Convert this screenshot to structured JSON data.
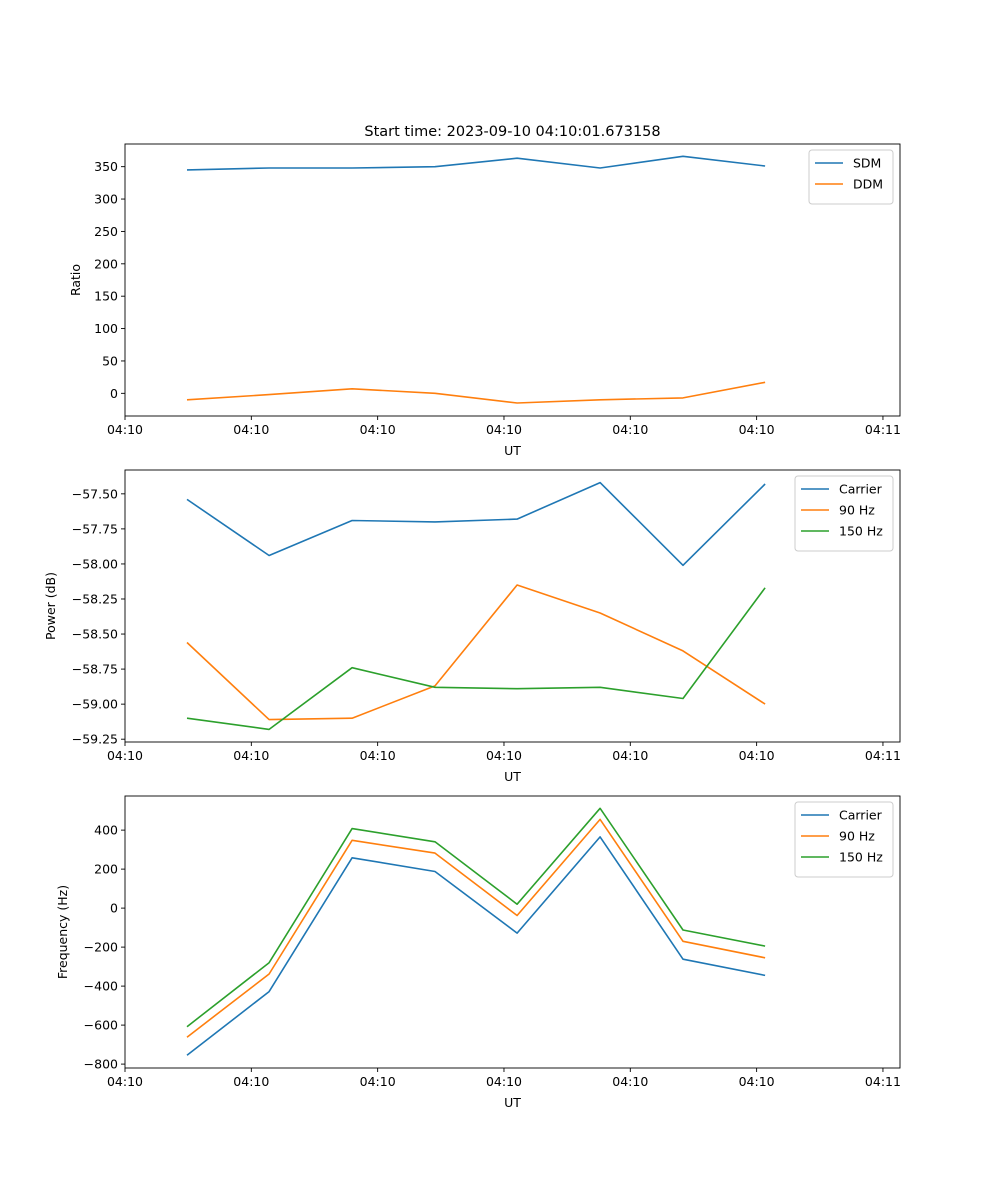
{
  "chart_data": [
    {
      "type": "line",
      "title": "Start time: 2023-09-10 04:10:01.673158",
      "xlabel": "UT",
      "ylabel": "Ratio",
      "xlim": [
        0,
        1
      ],
      "ylim": [
        -35,
        385
      ],
      "x": [
        0.08,
        0.186,
        0.293,
        0.4,
        0.506,
        0.613,
        0.72,
        0.826
      ],
      "xticks": [
        0.0,
        0.163,
        0.326,
        0.489,
        0.652,
        0.815,
        0.978
      ],
      "xtick_labels": [
        "04:10",
        "04:10",
        "04:10",
        "04:10",
        "04:10",
        "04:10",
        "04:11"
      ],
      "yticks": [
        0,
        50,
        100,
        150,
        200,
        250,
        300,
        350
      ],
      "ytick_labels": [
        "0",
        "50",
        "100",
        "150",
        "200",
        "250",
        "300",
        "350"
      ],
      "legend_position": "top-right",
      "series": [
        {
          "name": "SDM",
          "color": "#1f77b4",
          "values": [
            345,
            348,
            348,
            350,
            363,
            348,
            366,
            351
          ]
        },
        {
          "name": "DDM",
          "color": "#ff7f0e",
          "values": [
            -10,
            -2,
            7,
            0,
            -15,
            -10,
            -7,
            17
          ]
        }
      ]
    },
    {
      "type": "line",
      "title": "",
      "xlabel": "UT",
      "ylabel": "Power (dB)",
      "xlim": [
        0,
        1
      ],
      "ylim": [
        -59.27,
        -57.33
      ],
      "x": [
        0.08,
        0.186,
        0.293,
        0.4,
        0.506,
        0.613,
        0.72,
        0.826
      ],
      "xticks": [
        0.0,
        0.163,
        0.326,
        0.489,
        0.652,
        0.815,
        0.978
      ],
      "xtick_labels": [
        "04:10",
        "04:10",
        "04:10",
        "04:10",
        "04:10",
        "04:10",
        "04:11"
      ],
      "yticks": [
        -59.25,
        -59.0,
        -58.75,
        -58.5,
        -58.25,
        -58.0,
        -57.75,
        -57.5
      ],
      "ytick_labels": [
        "−59.25",
        "−59.00",
        "−58.75",
        "−58.50",
        "−58.25",
        "−58.00",
        "−57.75",
        "−57.50"
      ],
      "legend_position": "top-right",
      "series": [
        {
          "name": "Carrier",
          "color": "#1f77b4",
          "values": [
            -57.54,
            -57.94,
            -57.69,
            -57.7,
            -57.68,
            -57.42,
            -58.01,
            -57.43
          ]
        },
        {
          "name": "90 Hz",
          "color": "#ff7f0e",
          "values": [
            -58.56,
            -59.11,
            -59.1,
            -58.87,
            -58.15,
            -58.35,
            -58.62,
            -59.0
          ]
        },
        {
          "name": "150 Hz",
          "color": "#2ca02c",
          "values": [
            -59.1,
            -59.18,
            -58.74,
            -58.88,
            -58.89,
            -58.88,
            -58.96,
            -58.17
          ]
        }
      ]
    },
    {
      "type": "line",
      "title": "",
      "xlabel": "UT",
      "ylabel": "Frequency (Hz)",
      "xlim": [
        0,
        1
      ],
      "ylim": [
        -820,
        575
      ],
      "x": [
        0.08,
        0.186,
        0.293,
        0.4,
        0.506,
        0.613,
        0.72,
        0.826
      ],
      "xticks": [
        0.0,
        0.163,
        0.326,
        0.489,
        0.652,
        0.815,
        0.978
      ],
      "xtick_labels": [
        "04:10",
        "04:10",
        "04:10",
        "04:10",
        "04:10",
        "04:10",
        "04:11"
      ],
      "yticks": [
        -800,
        -600,
        -400,
        -200,
        0,
        200,
        400
      ],
      "ytick_labels": [
        "−800",
        "−600",
        "−400",
        "−200",
        "0",
        "200",
        "400"
      ],
      "legend_position": "top-right",
      "series": [
        {
          "name": "Carrier",
          "color": "#1f77b4",
          "values": [
            -755,
            -428,
            258,
            188,
            -128,
            365,
            -262,
            -345
          ]
        },
        {
          "name": "90 Hz",
          "color": "#ff7f0e",
          "values": [
            -662,
            -338,
            348,
            282,
            -38,
            455,
            -170,
            -255
          ]
        },
        {
          "name": "150 Hz",
          "color": "#2ca02c",
          "values": [
            -608,
            -280,
            408,
            340,
            20,
            512,
            -112,
            -195
          ]
        }
      ]
    }
  ]
}
